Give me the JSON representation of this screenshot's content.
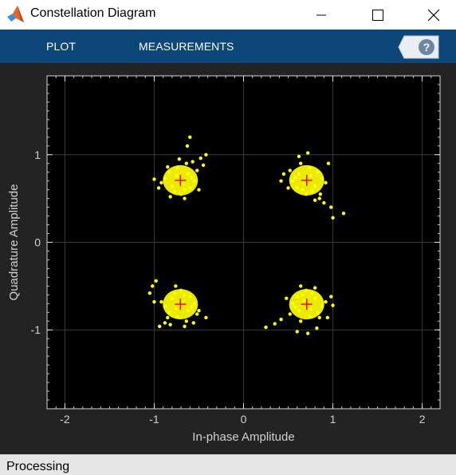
{
  "window": {
    "title": "Constellation Diagram",
    "icon": "matlab-icon",
    "controls": [
      "minimize-icon",
      "maximize-icon",
      "close-icon"
    ]
  },
  "toolstrip": {
    "tabs": [
      {
        "label": "PLOT"
      },
      {
        "label": "MEASUREMENTS"
      }
    ],
    "help_icon": "help-icon",
    "help_label": "?",
    "background": "#0d4678"
  },
  "status": {
    "text": "Processing"
  },
  "chart_data": {
    "type": "scatter",
    "title": "",
    "xlabel": "In-phase Amplitude",
    "ylabel": "Quadrature Amplitude",
    "xlim": [
      -2.2,
      2.2
    ],
    "ylim": [
      -1.9,
      1.9
    ],
    "xticks": [
      -2,
      -1,
      0,
      1,
      2
    ],
    "yticks": [
      -1,
      0,
      1
    ],
    "grid": true,
    "background": "#000000",
    "point_color": "#ffff00",
    "reference_color": "#ff0000",
    "reference_points": [
      {
        "x": -0.707,
        "y": 0.707
      },
      {
        "x": 0.707,
        "y": 0.707
      },
      {
        "x": -0.707,
        "y": -0.707
      },
      {
        "x": 0.707,
        "y": -0.707
      }
    ],
    "received_points": [
      {
        "x": -0.71,
        "y": 0.71
      },
      {
        "x": -0.62,
        "y": 0.78
      },
      {
        "x": -0.8,
        "y": 0.64
      },
      {
        "x": -0.55,
        "y": 0.7
      },
      {
        "x": -0.88,
        "y": 0.73
      },
      {
        "x": -0.66,
        "y": 0.6
      },
      {
        "x": -0.74,
        "y": 0.85
      },
      {
        "x": -0.6,
        "y": 0.62
      },
      {
        "x": -0.83,
        "y": 0.8
      },
      {
        "x": -0.7,
        "y": 0.55
      },
      {
        "x": -0.52,
        "y": 0.82
      },
      {
        "x": -0.92,
        "y": 0.68
      },
      {
        "x": -0.64,
        "y": 0.9
      },
      {
        "x": -0.77,
        "y": 0.58
      },
      {
        "x": -0.58,
        "y": 0.74
      },
      {
        "x": -0.85,
        "y": 0.86
      },
      {
        "x": -0.68,
        "y": 0.67
      },
      {
        "x": -0.75,
        "y": 0.76
      },
      {
        "x": -0.48,
        "y": 0.96
      },
      {
        "x": -0.45,
        "y": 0.88
      },
      {
        "x": -0.6,
        "y": 1.2
      },
      {
        "x": -0.63,
        "y": 1.1
      },
      {
        "x": -0.42,
        "y": 1.0
      },
      {
        "x": -0.5,
        "y": 0.6
      },
      {
        "x": -1.0,
        "y": 0.72
      },
      {
        "x": -0.95,
        "y": 0.62
      },
      {
        "x": -0.82,
        "y": 0.52
      },
      {
        "x": -0.66,
        "y": 0.5
      },
      {
        "x": -0.57,
        "y": 0.92
      },
      {
        "x": -0.72,
        "y": 0.95
      },
      {
        "x": 0.71,
        "y": 0.71
      },
      {
        "x": 0.62,
        "y": 0.78
      },
      {
        "x": 0.8,
        "y": 0.64
      },
      {
        "x": 0.55,
        "y": 0.7
      },
      {
        "x": 0.88,
        "y": 0.73
      },
      {
        "x": 0.66,
        "y": 0.6
      },
      {
        "x": 0.74,
        "y": 0.85
      },
      {
        "x": 0.6,
        "y": 0.62
      },
      {
        "x": 0.83,
        "y": 0.8
      },
      {
        "x": 0.7,
        "y": 0.55
      },
      {
        "x": 0.52,
        "y": 0.82
      },
      {
        "x": 0.92,
        "y": 0.68
      },
      {
        "x": 0.64,
        "y": 0.9
      },
      {
        "x": 0.77,
        "y": 0.58
      },
      {
        "x": 0.58,
        "y": 0.74
      },
      {
        "x": 0.85,
        "y": 0.5
      },
      {
        "x": 0.68,
        "y": 0.67
      },
      {
        "x": 0.75,
        "y": 0.76
      },
      {
        "x": 0.45,
        "y": 0.78
      },
      {
        "x": 0.42,
        "y": 0.7
      },
      {
        "x": 0.9,
        "y": 0.45
      },
      {
        "x": 0.98,
        "y": 0.4
      },
      {
        "x": 1.12,
        "y": 0.33
      },
      {
        "x": 1.0,
        "y": 0.28
      },
      {
        "x": 0.95,
        "y": 0.9
      },
      {
        "x": 0.86,
        "y": 0.55
      },
      {
        "x": 0.62,
        "y": 0.98
      },
      {
        "x": 0.72,
        "y": 1.02
      },
      {
        "x": 0.5,
        "y": 0.62
      },
      {
        "x": 0.8,
        "y": 0.48
      },
      {
        "x": -0.71,
        "y": -0.71
      },
      {
        "x": -0.62,
        "y": -0.78
      },
      {
        "x": -0.8,
        "y": -0.64
      },
      {
        "x": -0.55,
        "y": -0.7
      },
      {
        "x": -0.88,
        "y": -0.73
      },
      {
        "x": -0.66,
        "y": -0.6
      },
      {
        "x": -0.74,
        "y": -0.85
      },
      {
        "x": -0.6,
        "y": -0.62
      },
      {
        "x": -0.83,
        "y": -0.8
      },
      {
        "x": -0.7,
        "y": -0.55
      },
      {
        "x": -0.52,
        "y": -0.82
      },
      {
        "x": -0.92,
        "y": -0.68
      },
      {
        "x": -0.64,
        "y": -0.9
      },
      {
        "x": -0.77,
        "y": -0.58
      },
      {
        "x": -0.58,
        "y": -0.74
      },
      {
        "x": -0.85,
        "y": -0.86
      },
      {
        "x": -0.68,
        "y": -0.67
      },
      {
        "x": -0.75,
        "y": -0.76
      },
      {
        "x": -1.02,
        "y": -0.5
      },
      {
        "x": -1.05,
        "y": -0.58
      },
      {
        "x": -1.0,
        "y": -0.68
      },
      {
        "x": -0.94,
        "y": -0.96
      },
      {
        "x": -0.88,
        "y": -0.92
      },
      {
        "x": -0.42,
        "y": -0.86
      },
      {
        "x": -0.5,
        "y": -0.78
      },
      {
        "x": -0.76,
        "y": -0.5
      },
      {
        "x": -0.98,
        "y": -0.44
      },
      {
        "x": -0.56,
        "y": -0.92
      },
      {
        "x": -0.82,
        "y": -0.94
      },
      {
        "x": -0.66,
        "y": -0.96
      },
      {
        "x": 0.71,
        "y": -0.71
      },
      {
        "x": 0.62,
        "y": -0.78
      },
      {
        "x": 0.8,
        "y": -0.64
      },
      {
        "x": 0.55,
        "y": -0.7
      },
      {
        "x": 0.88,
        "y": -0.73
      },
      {
        "x": 0.66,
        "y": -0.6
      },
      {
        "x": 0.74,
        "y": -0.85
      },
      {
        "x": 0.6,
        "y": -0.62
      },
      {
        "x": 0.83,
        "y": -0.8
      },
      {
        "x": 0.7,
        "y": -0.55
      },
      {
        "x": 0.52,
        "y": -0.82
      },
      {
        "x": 0.92,
        "y": -0.68
      },
      {
        "x": 0.64,
        "y": -0.9
      },
      {
        "x": 0.77,
        "y": -0.58
      },
      {
        "x": 0.58,
        "y": -0.74
      },
      {
        "x": 0.85,
        "y": -0.86
      },
      {
        "x": 0.68,
        "y": -0.67
      },
      {
        "x": 0.75,
        "y": -0.76
      },
      {
        "x": 0.25,
        "y": -0.97
      },
      {
        "x": 0.35,
        "y": -0.93
      },
      {
        "x": 0.42,
        "y": -0.88
      },
      {
        "x": 0.98,
        "y": -0.62
      },
      {
        "x": 1.0,
        "y": -0.72
      },
      {
        "x": 0.94,
        "y": -0.86
      },
      {
        "x": 0.6,
        "y": -1.02
      },
      {
        "x": 0.72,
        "y": -1.04
      },
      {
        "x": 0.82,
        "y": -0.98
      },
      {
        "x": 0.64,
        "y": -0.5
      },
      {
        "x": 0.8,
        "y": -0.52
      },
      {
        "x": 0.48,
        "y": -0.64
      }
    ]
  }
}
